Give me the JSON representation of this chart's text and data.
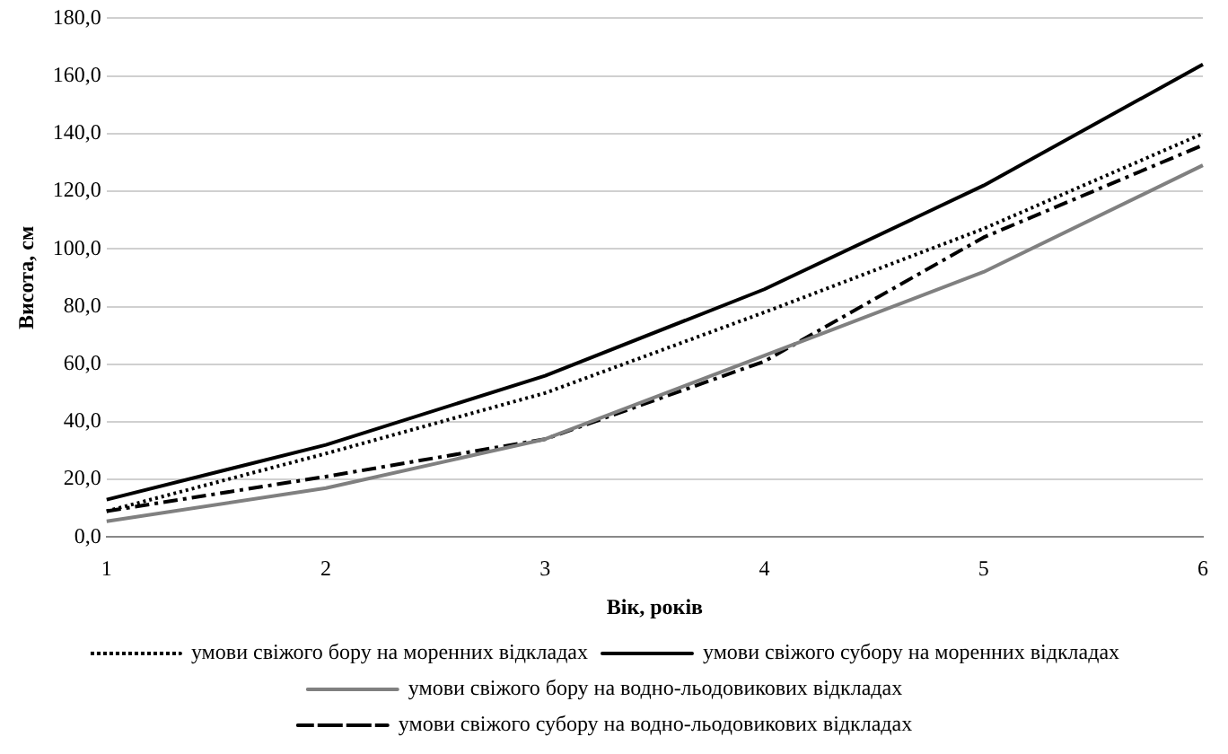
{
  "chart_data": {
    "type": "line",
    "xlabel": "Вік, років",
    "ylabel": "Висота, см",
    "categories": [
      "1",
      "2",
      "3",
      "4",
      "5",
      "6"
    ],
    "ylim": [
      0,
      180
    ],
    "yticks": [
      {
        "value": 0,
        "label": "0,0"
      },
      {
        "value": 20,
        "label": "20,0"
      },
      {
        "value": 40,
        "label": "40,0"
      },
      {
        "value": 60,
        "label": "60,0"
      },
      {
        "value": 80,
        "label": "80,0"
      },
      {
        "value": 100,
        "label": "100,0"
      },
      {
        "value": 120,
        "label": "120,0"
      },
      {
        "value": 140,
        "label": "140,0"
      },
      {
        "value": 160,
        "label": "160,0"
      },
      {
        "value": 180,
        "label": "180,0"
      }
    ],
    "grid": "y",
    "legend": "bottom",
    "marker": "none",
    "series": [
      {
        "name": "умови свіжого бору на моренних відкладах",
        "color": "#000000",
        "line_style": "dotted",
        "values": [
          9,
          29,
          50,
          78,
          107,
          140
        ]
      },
      {
        "name": "умови свіжого субору на моренних відкладах",
        "color": "#000000",
        "line_style": "solid",
        "values": [
          13,
          32,
          56,
          86,
          122,
          164
        ]
      },
      {
        "name": "умови свіжого бору на водно-льодовикових відкладах",
        "color": "#808080",
        "line_style": "solid",
        "values": [
          5.5,
          17,
          34,
          63,
          92,
          129
        ]
      },
      {
        "name": "умови свіжого субору на водно-льодовикових відкладах",
        "color": "#000000",
        "line_style": "dashdot",
        "values": [
          9,
          21,
          34,
          61,
          104,
          136
        ]
      }
    ]
  }
}
